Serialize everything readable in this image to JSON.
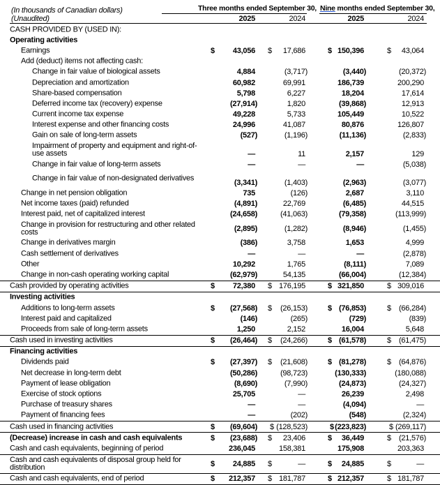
{
  "header": {
    "units": "(In thousands of Canadian dollars)",
    "unaudited": "(Unaudited)",
    "three_months": "Three months ended September 30,",
    "nine_word": "Nine",
    "nine_months_rest": " months ended September 30,",
    "years": [
      "2025",
      "2024",
      "2025",
      "2024"
    ]
  },
  "rows": [
    {
      "label": "CASH PROVIDED BY (USED IN):",
      "indent": 0,
      "values": [
        "",
        "",
        "",
        ""
      ]
    },
    {
      "label": "Operating activities",
      "indent": 0,
      "bold": true,
      "values": [
        "",
        "",
        "",
        ""
      ]
    },
    {
      "label": "Earnings",
      "indent": 1,
      "values": [
        "43,056",
        "17,686",
        "150,396",
        "43,064"
      ],
      "dollar": true
    },
    {
      "label": "Add (deduct) items not affecting cash:",
      "indent": 1,
      "values": [
        "",
        "",
        "",
        ""
      ]
    },
    {
      "label": "Change in fair value of biological assets",
      "indent": 2,
      "values": [
        "4,884",
        "(3,717)",
        "(3,440)",
        "(20,372)"
      ]
    },
    {
      "label": "Depreciation and amortization",
      "indent": 2,
      "values": [
        "60,982",
        "69,991",
        "186,739",
        "200,290"
      ]
    },
    {
      "label": "Share-based compensation",
      "indent": 2,
      "values": [
        "5,798",
        "6,227",
        "18,204",
        "17,614"
      ]
    },
    {
      "label": "Deferred income tax (recovery) expense",
      "indent": 2,
      "values": [
        "(27,914)",
        "1,820",
        "(39,868)",
        "12,913"
      ]
    },
    {
      "label": "Current income tax expense",
      "indent": 2,
      "values": [
        "49,228",
        "5,733",
        "105,449",
        "10,522"
      ]
    },
    {
      "label": "Interest expense and other financing costs",
      "indent": 2,
      "values": [
        "24,996",
        "41,087",
        "80,876",
        "126,807"
      ]
    },
    {
      "label": "Gain on sale of long-term assets",
      "indent": 2,
      "values": [
        "(527)",
        "(1,196)",
        "(11,136)",
        "(2,833)"
      ]
    },
    {
      "label": "Impairment of property and equipment and right-of-use assets",
      "indent": 2,
      "values": [
        "—",
        "11",
        "2,157",
        "129"
      ],
      "tall": true,
      "valign": "bottom"
    },
    {
      "label": "Change in fair value of long-term assets",
      "indent": 2,
      "values": [
        "—",
        "—",
        "—",
        "(5,038)"
      ]
    },
    {
      "label": "Change in fair value of non-designated derivatives",
      "indent": 2,
      "values": [
        "(3,341)",
        "(1,403)",
        "(2,963)",
        "(3,077)"
      ],
      "tall": true,
      "valign": "bottom"
    },
    {
      "label": "Change in net pension obligation",
      "indent": 1,
      "values": [
        "735",
        "(126)",
        "2,687",
        "3,110"
      ]
    },
    {
      "label": "Net income taxes (paid) refunded",
      "indent": 1,
      "values": [
        "(4,891)",
        "22,769",
        "(6,485)",
        "44,515"
      ]
    },
    {
      "label": "Interest paid, net of capitalized interest",
      "indent": 1,
      "values": [
        "(24,658)",
        "(41,063)",
        "(79,358)",
        "(113,999)"
      ]
    },
    {
      "label": "Change in provision for restructuring and other related costs",
      "indent": 1,
      "values": [
        "(2,895)",
        "(1,282)",
        "(8,946)",
        "(1,455)"
      ],
      "tall": true
    },
    {
      "label": "Change in derivatives margin",
      "indent": 1,
      "values": [
        "(386)",
        "3,758",
        "1,653",
        "4,999"
      ]
    },
    {
      "label": "Cash settlement of derivatives",
      "indent": 1,
      "values": [
        "—",
        "—",
        "—",
        "(2,878)"
      ]
    },
    {
      "label": "Other",
      "indent": 1,
      "values": [
        "10,292",
        "1,765",
        "(8,111)",
        "7,089"
      ]
    },
    {
      "label": "Change in non-cash operating working capital",
      "indent": 1,
      "values": [
        "(62,979)",
        "54,135",
        "(66,004)",
        "(12,384)"
      ]
    },
    {
      "label": "Cash provided by operating activities",
      "indent": 0,
      "values": [
        "72,380",
        "176,195",
        "321,850",
        "309,016"
      ],
      "dollar": true,
      "border_top": true,
      "border_bottom": true
    },
    {
      "label": "Investing activities",
      "indent": 0,
      "bold": true,
      "values": [
        "",
        "",
        "",
        ""
      ]
    },
    {
      "label": "Additions to long-term assets",
      "indent": 1,
      "values": [
        "(27,568)",
        "(26,153)",
        "(76,853)",
        "(66,284)"
      ],
      "dollar": true
    },
    {
      "label": "Interest paid and capitalized",
      "indent": 1,
      "values": [
        "(146)",
        "(265)",
        "(729)",
        "(839)"
      ]
    },
    {
      "label": "Proceeds from sale of long-term assets",
      "indent": 1,
      "values": [
        "1,250",
        "2,152",
        "16,004",
        "5,648"
      ]
    },
    {
      "label": "Cash used in investing activities",
      "indent": 0,
      "values": [
        "(26,464)",
        "(24,266)",
        "(61,578)",
        "(61,475)"
      ],
      "dollar": true,
      "border_top": true,
      "border_bottom": true
    },
    {
      "label": "Financing activities",
      "indent": 0,
      "bold": true,
      "values": [
        "",
        "",
        "",
        ""
      ]
    },
    {
      "label": "Dividends paid",
      "indent": 1,
      "values": [
        "(27,397)",
        "(21,608)",
        "(81,278)",
        "(64,876)"
      ],
      "dollar": true
    },
    {
      "label": "Net decrease in long-term debt",
      "indent": 1,
      "values": [
        "(50,286)",
        "(98,723)",
        "(130,333)",
        "(180,088)"
      ]
    },
    {
      "label": "Payment of lease obligation",
      "indent": 1,
      "values": [
        "(8,690)",
        "(7,990)",
        "(24,873)",
        "(24,327)"
      ]
    },
    {
      "label": "Exercise of stock options",
      "indent": 1,
      "values": [
        "25,705",
        "—",
        "26,239",
        "2,498"
      ]
    },
    {
      "label": "Purchase of treasury shares",
      "indent": 1,
      "values": [
        "—",
        "—",
        "(4,094)",
        "—"
      ]
    },
    {
      "label": "Payment of financing fees",
      "indent": 1,
      "values": [
        "—",
        "(202)",
        "(548)",
        "(2,324)"
      ]
    },
    {
      "label": "Cash used in financing activities",
      "indent": 0,
      "values": [
        "(69,604)",
        "(128,523)",
        "(223,823)",
        "(269,117)"
      ],
      "dollar": true,
      "tight_dollar": [
        false,
        true,
        true,
        true
      ],
      "border_top": true,
      "border_bottom": true
    },
    {
      "label": "(Decrease) increase in cash and cash equivalents",
      "indent": 0,
      "bold": true,
      "values": [
        "(23,688)",
        "23,406",
        "36,449",
        "(21,576)"
      ],
      "dollar": true
    },
    {
      "label": "Cash and cash equivalents, beginning of period",
      "indent": 0,
      "values": [
        "236,045",
        "158,381",
        "175,908",
        "203,363"
      ],
      "border_bottom": true
    },
    {
      "label": "Cash and cash equivalents of disposal group held for distribution",
      "indent": 0,
      "values": [
        "24,885",
        "—",
        "24,885",
        "—"
      ],
      "dollar": true,
      "tall": true,
      "border_bottom": true
    },
    {
      "label": "Cash and cash equivalents, end of period",
      "indent": 0,
      "values": [
        "212,357",
        "181,787",
        "212,357",
        "181,787"
      ],
      "dollar": true,
      "border_bottom": true
    }
  ],
  "currency_symbol": "$"
}
